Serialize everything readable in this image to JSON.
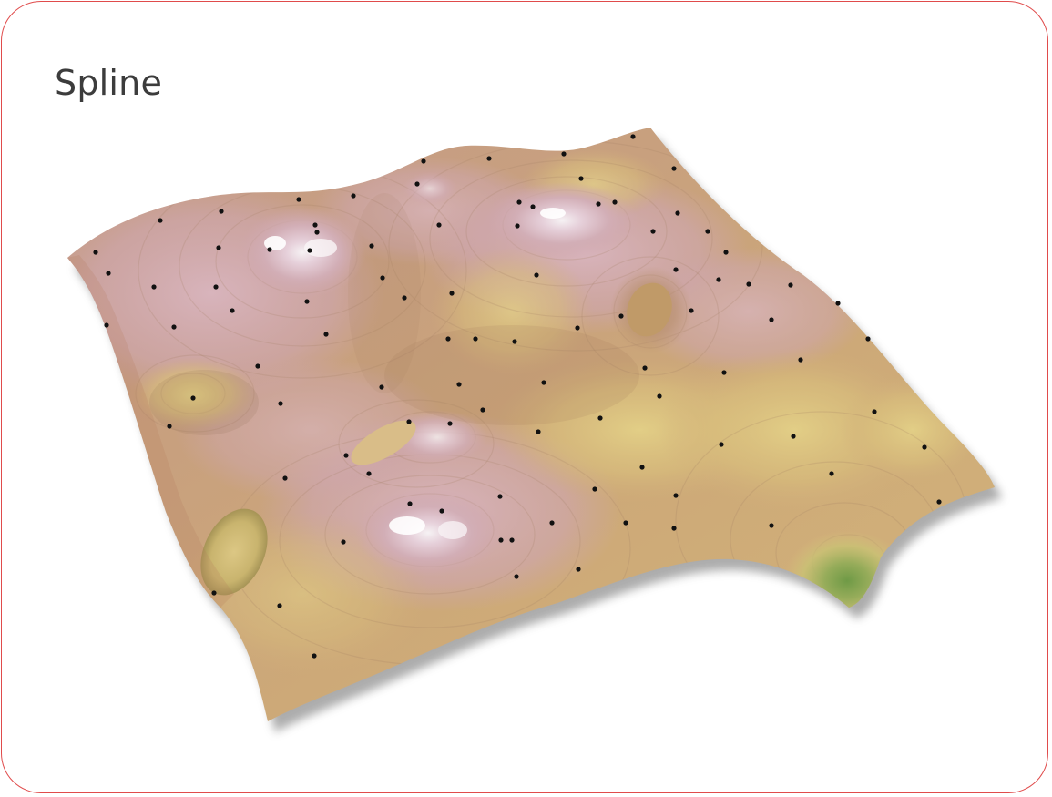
{
  "title": "Spline",
  "colors": {
    "border": "#e04b4b",
    "title_text": "#3c3c3c",
    "surface_base": "#c79a80",
    "surface_pink": "#cfa6ad",
    "surface_tan": "#d2b07a",
    "surface_yellow": "#dcc67e",
    "surface_green": "#7c9e4e",
    "peak_highlight": "#f4eef2",
    "sample_point": "#111111"
  },
  "figure": {
    "description_icon": "spline-surface-3d",
    "sample_point_icon": "dot"
  }
}
